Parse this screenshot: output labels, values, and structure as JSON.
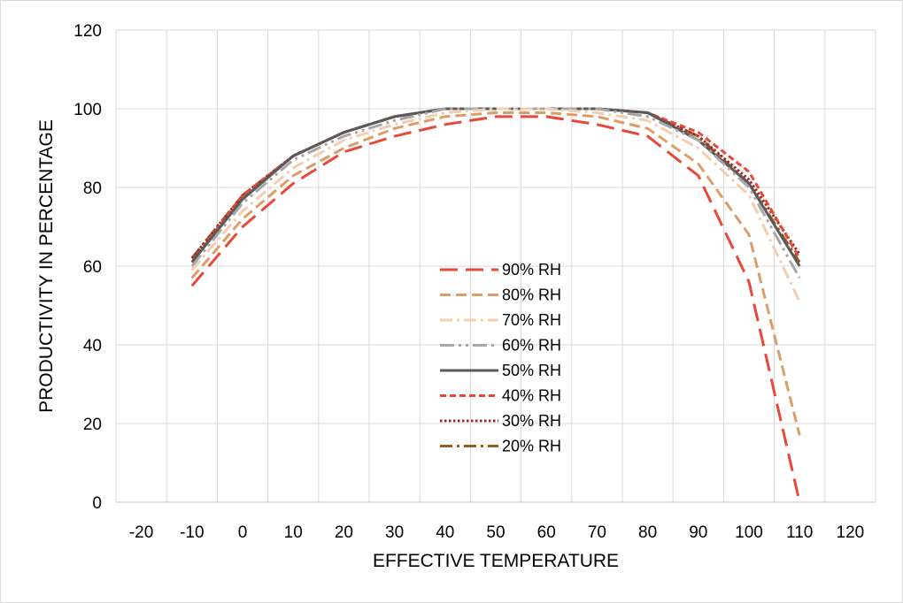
{
  "chart_data": {
    "type": "line",
    "title": "",
    "xlabel": "EFFECTIVE TEMPERATURE",
    "ylabel": "PRODUCTIVITY IN PERCENTAGE",
    "xlim": [
      -25,
      125
    ],
    "ylim": [
      0,
      120
    ],
    "xticks": [
      -20,
      -10,
      0,
      10,
      20,
      30,
      40,
      50,
      60,
      70,
      80,
      90,
      100,
      110,
      120
    ],
    "yticks": [
      0,
      20,
      40,
      60,
      80,
      100,
      120
    ],
    "grid": true,
    "legend_position": "center",
    "series": [
      {
        "name": "90% RH",
        "color": "#e8483a",
        "dash": "long-dash",
        "x": [
          -10,
          0,
          10,
          20,
          30,
          40,
          50,
          60,
          70,
          80,
          90,
          100,
          110
        ],
        "y": [
          55,
          70,
          81,
          89,
          93,
          96,
          98,
          98,
          96,
          93,
          83,
          56,
          0
        ]
      },
      {
        "name": "80% RH",
        "color": "#dc9c68",
        "dash": "dash",
        "x": [
          -10,
          0,
          10,
          20,
          30,
          40,
          50,
          60,
          70,
          80,
          90,
          100,
          110
        ],
        "y": [
          57,
          72,
          83,
          90,
          95,
          98,
          99,
          99,
          98,
          95,
          86,
          68,
          17
        ]
      },
      {
        "name": "70% RH",
        "color": "#f2cdb0",
        "dash": "dash-dot",
        "x": [
          -10,
          0,
          10,
          20,
          30,
          40,
          50,
          60,
          70,
          80,
          90,
          100,
          110
        ],
        "y": [
          59,
          74,
          85,
          92,
          96,
          99,
          100,
          100,
          99,
          97,
          90,
          78,
          51
        ]
      },
      {
        "name": "60% RH",
        "color": "#a6a6a6",
        "dash": "long-dash-dot-dot",
        "x": [
          -10,
          0,
          10,
          20,
          30,
          40,
          50,
          60,
          70,
          80,
          90,
          100,
          110
        ],
        "y": [
          60,
          76,
          87,
          93,
          97,
          100,
          100,
          100,
          100,
          98,
          92,
          80,
          57
        ]
      },
      {
        "name": "50% RH",
        "color": "#595959",
        "dash": "solid",
        "x": [
          -10,
          0,
          10,
          20,
          30,
          40,
          50,
          60,
          70,
          80,
          90,
          100,
          110
        ],
        "y": [
          61,
          77,
          88,
          94,
          98,
          100,
          100,
          100,
          100,
          99,
          92,
          81,
          60
        ]
      },
      {
        "name": "40% RH",
        "color": "#e8483a",
        "dash": "short-dash",
        "x": [
          -10,
          0,
          10,
          20,
          30,
          40,
          50,
          60,
          70,
          80,
          90,
          100,
          110
        ],
        "y": [
          61,
          78,
          88,
          94,
          98,
          100,
          100,
          100,
          100,
          99,
          94,
          84,
          62
        ]
      },
      {
        "name": "30% RH",
        "color": "#a0281e",
        "dash": "dot",
        "x": [
          -10,
          0,
          10,
          20,
          30,
          40,
          50,
          60,
          70,
          80,
          90,
          100,
          110
        ],
        "y": [
          62,
          78,
          88,
          94,
          98,
          100,
          100,
          100,
          100,
          99,
          93,
          82,
          63
        ]
      },
      {
        "name": "20% RH",
        "color": "#9a5a22",
        "dash": "dash-dot",
        "x": [
          -10,
          0,
          10,
          20,
          30,
          40,
          50,
          60,
          70,
          80,
          90,
          100,
          110
        ],
        "y": [
          62,
          78,
          88,
          94,
          98,
          100,
          100,
          100,
          100,
          99,
          93,
          81,
          61
        ]
      }
    ]
  }
}
